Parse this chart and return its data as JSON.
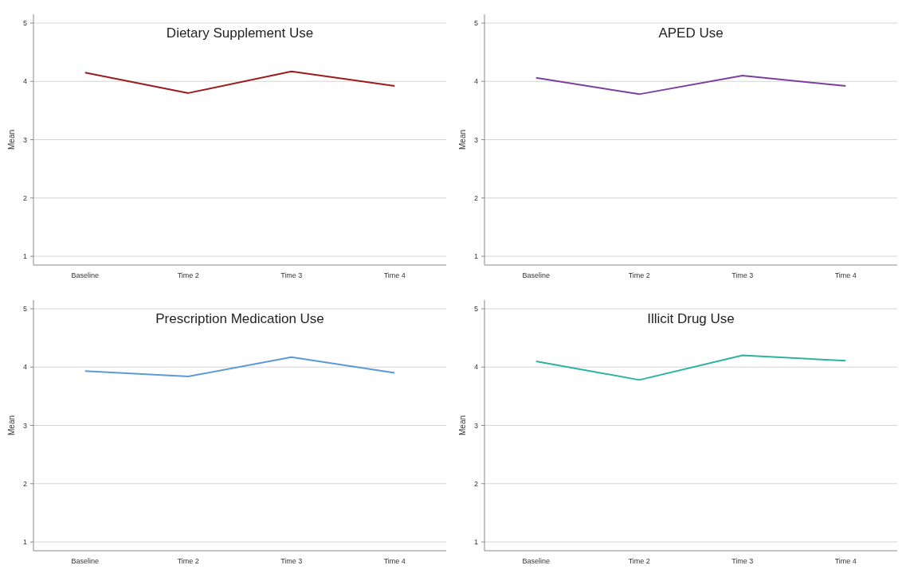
{
  "chart_data": [
    {
      "type": "line",
      "title": "Dietary Supplement Use",
      "ylabel": "Mean",
      "categories": [
        "Baseline",
        "Time 2",
        "Time 3",
        "Time 4"
      ],
      "series": [
        {
          "color": "#9b1c1c",
          "values": [
            4.15,
            3.8,
            4.17,
            3.92
          ]
        }
      ],
      "ylim": [
        0.85,
        5.15
      ],
      "yticks": [
        1,
        2,
        3,
        4,
        5
      ],
      "grid": "y"
    },
    {
      "type": "line",
      "title": "APED Use",
      "ylabel": "Mean",
      "categories": [
        "Baseline",
        "Time 2",
        "Time 3",
        "Time 4"
      ],
      "series": [
        {
          "color": "#7b3f9e",
          "values": [
            4.06,
            3.78,
            4.1,
            3.92
          ]
        }
      ],
      "ylim": [
        0.85,
        5.15
      ],
      "yticks": [
        1,
        2,
        3,
        4,
        5
      ],
      "grid": "y"
    },
    {
      "type": "line",
      "title": "Prescription Medication Use",
      "ylabel": "Mean",
      "categories": [
        "Baseline",
        "Time 2",
        "Time 3",
        "Time 4"
      ],
      "series": [
        {
          "color": "#5b9bd5",
          "values": [
            3.93,
            3.84,
            4.17,
            3.9
          ]
        }
      ],
      "ylim": [
        0.85,
        5.15
      ],
      "yticks": [
        1,
        2,
        3,
        4,
        5
      ],
      "grid": "y"
    },
    {
      "type": "line",
      "title": "Illicit Drug Use",
      "ylabel": "Mean",
      "categories": [
        "Baseline",
        "Time 2",
        "Time 3",
        "Time 4"
      ],
      "series": [
        {
          "color": "#2ab3a0",
          "values": [
            4.1,
            3.78,
            4.2,
            4.11
          ]
        }
      ],
      "ylim": [
        0.85,
        5.15
      ],
      "yticks": [
        1,
        2,
        3,
        4,
        5
      ],
      "grid": "y"
    }
  ]
}
